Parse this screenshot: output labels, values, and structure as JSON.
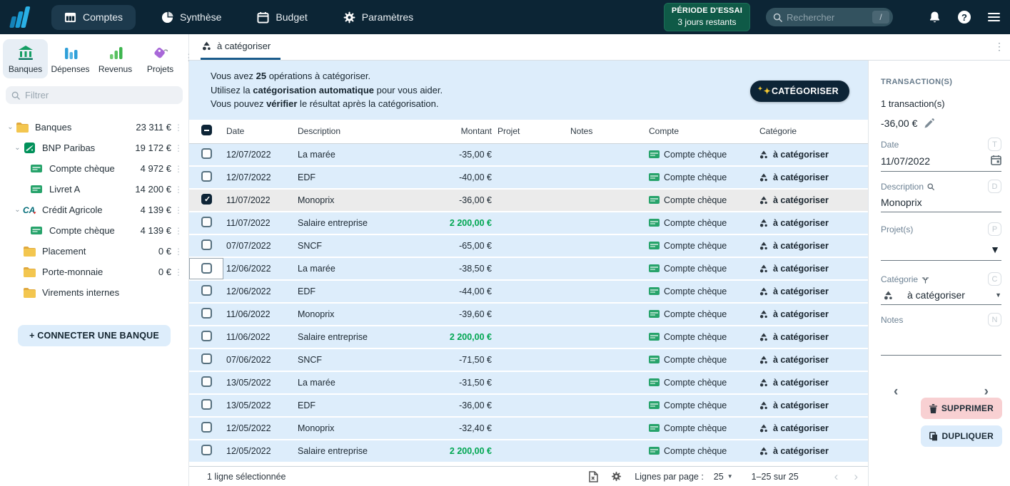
{
  "navbar": {
    "items": [
      {
        "label": "Comptes",
        "icon": "accounts",
        "active": true
      },
      {
        "label": "Synthèse",
        "icon": "pie",
        "active": false
      },
      {
        "label": "Budget",
        "icon": "calendar",
        "active": false
      },
      {
        "label": "Paramètres",
        "icon": "gear",
        "active": false
      }
    ],
    "trial": {
      "line1": "PÉRIODE D'ESSAI",
      "line2": "3 jours restants"
    },
    "search": {
      "placeholder": "Rechercher",
      "shortcut": "/"
    }
  },
  "sidebar": {
    "tabs": [
      {
        "label": "Banques",
        "icon": "bank",
        "active": true
      },
      {
        "label": "Dépenses",
        "icon": "bars-blue",
        "active": false
      },
      {
        "label": "Revenus",
        "icon": "bars-green",
        "active": false
      },
      {
        "label": "Projets",
        "icon": "tag",
        "active": false
      }
    ],
    "filter_placeholder": "Filtrer",
    "tree": [
      {
        "label": "Banques",
        "amount": "23 311 €",
        "level": 0,
        "icon": "folder",
        "chevron": true,
        "menu": true
      },
      {
        "label": "BNP Paribas",
        "amount": "19 172 €",
        "level": 1,
        "icon": "bnp",
        "chevron": true,
        "menu": true
      },
      {
        "label": "Compte chèque",
        "amount": "4 972 €",
        "level": 2,
        "icon": "card",
        "chevron": false,
        "menu": true
      },
      {
        "label": "Livret A",
        "amount": "14 200 €",
        "level": 2,
        "icon": "card",
        "chevron": false,
        "menu": true
      },
      {
        "label": "Crédit Agricole",
        "amount": "4 139 €",
        "level": 1,
        "icon": "ca",
        "chevron": true,
        "menu": true
      },
      {
        "label": "Compte chèque",
        "amount": "4 139 €",
        "level": 2,
        "icon": "card",
        "chevron": false,
        "menu": true
      },
      {
        "label": "Placement",
        "amount": "0 €",
        "level": 1,
        "icon": "folder",
        "chevron": false,
        "menu": true
      },
      {
        "label": "Porte-monnaie",
        "amount": "0 €",
        "level": 1,
        "icon": "folder",
        "chevron": false,
        "menu": true
      },
      {
        "label": "Virements internes",
        "amount": "",
        "level": 1,
        "icon": "folder",
        "chevron": false,
        "menu": false
      }
    ],
    "connect_button": "+ CONNECTER UNE BANQUE"
  },
  "main": {
    "tab": "à catégoriser",
    "banner": {
      "line1_pre": "Vous avez ",
      "line1_bold": "25",
      "line1_post": " opérations à catégoriser.",
      "line2_pre": "Utilisez la ",
      "line2_bold": "catégorisation automatique",
      "line2_post": " pour vous aider.",
      "line3_pre": "Vous pouvez ",
      "line3_bold": "vérifier",
      "line3_post": " le résultat après la catégorisation.",
      "button": "CATÉGORISER"
    },
    "table": {
      "headers": [
        "Date",
        "Description",
        "Montant",
        "Projet",
        "Notes",
        "Compte",
        "Catégorie"
      ],
      "rows": [
        {
          "date": "12/07/2022",
          "description": "La marée",
          "amount": "-35,00 €",
          "positive": false,
          "project": "",
          "notes": "",
          "account": "Compte chèque",
          "category": "à catégoriser",
          "selected": false,
          "focus": false
        },
        {
          "date": "12/07/2022",
          "description": "EDF",
          "amount": "-40,00 €",
          "positive": false,
          "project": "",
          "notes": "",
          "account": "Compte chèque",
          "category": "à catégoriser",
          "selected": false,
          "focus": false
        },
        {
          "date": "11/07/2022",
          "description": "Monoprix",
          "amount": "-36,00 €",
          "positive": false,
          "project": "",
          "notes": "",
          "account": "Compte chèque",
          "category": "à catégoriser",
          "selected": true,
          "focus": false
        },
        {
          "date": "11/07/2022",
          "description": "Salaire entreprise",
          "amount": "2 200,00 €",
          "positive": true,
          "project": "",
          "notes": "",
          "account": "Compte chèque",
          "category": "à catégoriser",
          "selected": false,
          "focus": false
        },
        {
          "date": "07/07/2022",
          "description": "SNCF",
          "amount": "-65,00 €",
          "positive": false,
          "project": "",
          "notes": "",
          "account": "Compte chèque",
          "category": "à catégoriser",
          "selected": false,
          "focus": false
        },
        {
          "date": "12/06/2022",
          "description": "La marée",
          "amount": "-38,50 €",
          "positive": false,
          "project": "",
          "notes": "",
          "account": "Compte chèque",
          "category": "à catégoriser",
          "selected": false,
          "focus": true
        },
        {
          "date": "12/06/2022",
          "description": "EDF",
          "amount": "-44,00 €",
          "positive": false,
          "project": "",
          "notes": "",
          "account": "Compte chèque",
          "category": "à catégoriser",
          "selected": false,
          "focus": false
        },
        {
          "date": "11/06/2022",
          "description": "Monoprix",
          "amount": "-39,60 €",
          "positive": false,
          "project": "",
          "notes": "",
          "account": "Compte chèque",
          "category": "à catégoriser",
          "selected": false,
          "focus": false
        },
        {
          "date": "11/06/2022",
          "description": "Salaire entreprise",
          "amount": "2 200,00 €",
          "positive": true,
          "project": "",
          "notes": "",
          "account": "Compte chèque",
          "category": "à catégoriser",
          "selected": false,
          "focus": false
        },
        {
          "date": "07/06/2022",
          "description": "SNCF",
          "amount": "-71,50 €",
          "positive": false,
          "project": "",
          "notes": "",
          "account": "Compte chèque",
          "category": "à catégoriser",
          "selected": false,
          "focus": false
        },
        {
          "date": "13/05/2022",
          "description": "La marée",
          "amount": "-31,50 €",
          "positive": false,
          "project": "",
          "notes": "",
          "account": "Compte chèque",
          "category": "à catégoriser",
          "selected": false,
          "focus": false
        },
        {
          "date": "13/05/2022",
          "description": "EDF",
          "amount": "-36,00 €",
          "positive": false,
          "project": "",
          "notes": "",
          "account": "Compte chèque",
          "category": "à catégoriser",
          "selected": false,
          "focus": false
        },
        {
          "date": "12/05/2022",
          "description": "Monoprix",
          "amount": "-32,40 €",
          "positive": false,
          "project": "",
          "notes": "",
          "account": "Compte chèque",
          "category": "à catégoriser",
          "selected": false,
          "focus": false
        },
        {
          "date": "12/05/2022",
          "description": "Salaire entreprise",
          "amount": "2 200,00 €",
          "positive": true,
          "project": "",
          "notes": "",
          "account": "Compte chèque",
          "category": "à catégoriser",
          "selected": false,
          "focus": false
        }
      ]
    },
    "footer": {
      "selection": "1 ligne sélectionnée",
      "rows_per_page_label": "Lignes par page :",
      "rows_per_page": "25",
      "range": "1–25 sur 25"
    }
  },
  "panel": {
    "title": "TRANSACTION(S)",
    "count": "1 transaction(s)",
    "amount": "-36,00 €",
    "fields": {
      "date": {
        "label": "Date",
        "value": "11/07/2022",
        "shortcut": "T"
      },
      "description": {
        "label": "Description",
        "value": "Monoprix",
        "shortcut": "D"
      },
      "projects": {
        "label": "Projet(s)",
        "value": "",
        "shortcut": "P"
      },
      "category": {
        "label": "Catégorie",
        "value": "à catégoriser",
        "shortcut": "C"
      },
      "notes": {
        "label": "Notes",
        "value": "",
        "shortcut": "N"
      }
    },
    "delete_button": "SUPPRIMER",
    "duplicate_button": "DUPLIQUER"
  },
  "colors": {
    "navbar": "#0c2535",
    "row_blue": "#ddedfb",
    "selected_row": "#ebebeb",
    "positive_green": "#00a651",
    "trial_green": "#0f5a47",
    "tab_underline": "#1b5c8c",
    "delete_pink": "#f8d0d2",
    "duplicate_blue": "#dcecfb"
  }
}
